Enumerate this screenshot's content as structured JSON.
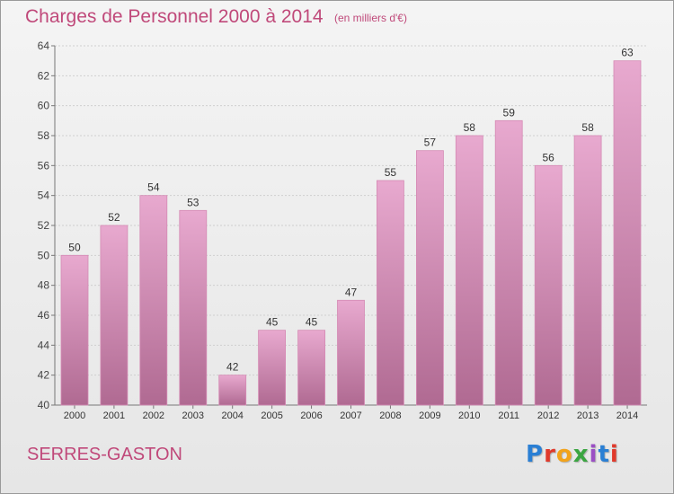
{
  "title": "Charges de Personnel 2000 à 2014",
  "subtitle": "(en milliers d'€)",
  "place": "SERRES-GASTON",
  "logo": "Proxiti",
  "colors": {
    "title": "#c0497a",
    "bar_top": "#e8a9cf",
    "bar_bottom": "#b06a92",
    "background": "#eeeeee"
  },
  "chart_data": {
    "type": "bar",
    "title": "Charges de Personnel 2000 à 2014",
    "subtitle": "(en milliers d'€)",
    "xlabel": "",
    "ylabel": "",
    "categories": [
      "2000",
      "2001",
      "2002",
      "2003",
      "2004",
      "2005",
      "2006",
      "2007",
      "2008",
      "2009",
      "2010",
      "2011",
      "2012",
      "2013",
      "2014"
    ],
    "values": [
      50,
      52,
      54,
      53,
      42,
      45,
      45,
      47,
      55,
      57,
      58,
      59,
      56,
      58,
      63
    ],
    "ylim": [
      40,
      64
    ],
    "yticks": [
      40,
      42,
      44,
      46,
      48,
      50,
      52,
      54,
      56,
      58,
      60,
      62,
      64
    ],
    "grid": true,
    "data_labels": true
  }
}
